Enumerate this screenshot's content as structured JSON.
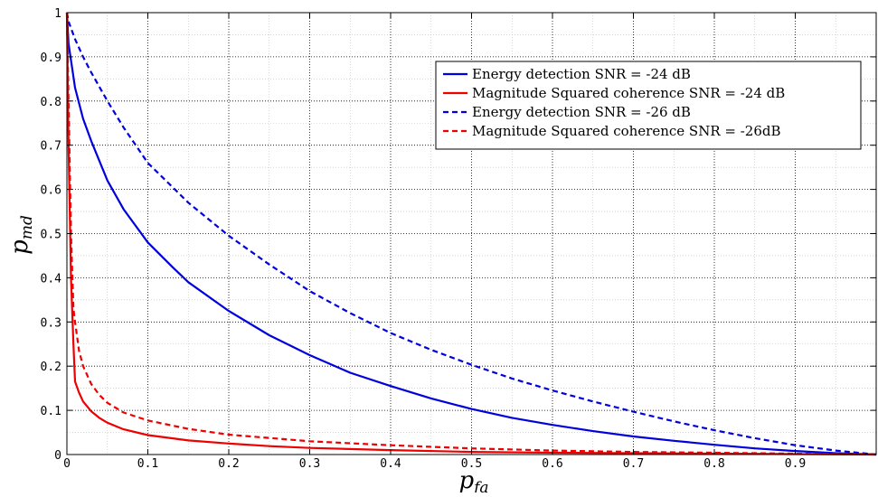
{
  "chart_data": {
    "type": "line",
    "xlabel": "p",
    "xlabel_sub": "fa",
    "ylabel": "p",
    "ylabel_sub": "md",
    "xlim": [
      0,
      1
    ],
    "ylim": [
      0,
      1
    ],
    "grid": true,
    "minor_grid": true,
    "legend_position": "top-right",
    "xticks": [
      "0",
      "0.1",
      "0.2",
      "0.3",
      "0.4",
      "0.5",
      "0.6",
      "0.7",
      "0.8",
      "0.9"
    ],
    "yticks": [
      "0",
      "0.1",
      "0.2",
      "0.3",
      "0.4",
      "0.5",
      "0.6",
      "0.7",
      "0.8",
      "0.9",
      "1"
    ],
    "series": [
      {
        "name": "Energy detection SNR = -24 dB",
        "color": "#0000dd",
        "dash": "solid",
        "x": [
          0,
          0.002,
          0.01,
          0.02,
          0.03,
          0.05,
          0.07,
          0.1,
          0.13,
          0.15,
          0.2,
          0.25,
          0.3,
          0.35,
          0.4,
          0.45,
          0.5,
          0.55,
          0.6,
          0.65,
          0.7,
          0.75,
          0.8,
          0.85,
          0.9,
          0.95,
          1.0
        ],
        "y": [
          1.0,
          0.93,
          0.83,
          0.76,
          0.71,
          0.62,
          0.555,
          0.48,
          0.425,
          0.39,
          0.325,
          0.27,
          0.225,
          0.185,
          0.155,
          0.127,
          0.103,
          0.083,
          0.067,
          0.053,
          0.041,
          0.031,
          0.022,
          0.014,
          0.008,
          0.003,
          0.0
        ]
      },
      {
        "name": "Magnitude Squared coherence SNR = -24 dB",
        "color": "#ee0000",
        "dash": "solid",
        "x": [
          0,
          0.002,
          0.005,
          0.008,
          0.01,
          0.015,
          0.02,
          0.03,
          0.04,
          0.05,
          0.07,
          0.1,
          0.15,
          0.2,
          0.25,
          0.3,
          0.4,
          0.5,
          0.6,
          0.7,
          0.8,
          0.9,
          1.0
        ],
        "y": [
          1.0,
          0.7,
          0.4,
          0.25,
          0.165,
          0.14,
          0.12,
          0.098,
          0.083,
          0.072,
          0.057,
          0.044,
          0.032,
          0.025,
          0.019,
          0.015,
          0.01,
          0.006,
          0.004,
          0.003,
          0.002,
          0.001,
          0.0
        ]
      },
      {
        "name": "Energy detection SNR = -26 dB",
        "color": "#0000dd",
        "dash": "dashed",
        "x": [
          0,
          0.002,
          0.01,
          0.02,
          0.03,
          0.05,
          0.07,
          0.1,
          0.15,
          0.2,
          0.25,
          0.3,
          0.35,
          0.4,
          0.45,
          0.5,
          0.55,
          0.6,
          0.65,
          0.7,
          0.75,
          0.8,
          0.85,
          0.9,
          0.95,
          1.0
        ],
        "y": [
          1.0,
          0.98,
          0.94,
          0.9,
          0.865,
          0.8,
          0.74,
          0.66,
          0.57,
          0.495,
          0.43,
          0.37,
          0.32,
          0.275,
          0.237,
          0.203,
          0.172,
          0.145,
          0.12,
          0.097,
          0.075,
          0.055,
          0.037,
          0.021,
          0.009,
          0.0
        ]
      },
      {
        "name": "Magnitude Squared coherence SNR = -26dB",
        "color": "#ee0000",
        "dash": "dashed",
        "x": [
          0,
          0.002,
          0.005,
          0.008,
          0.01,
          0.015,
          0.02,
          0.03,
          0.04,
          0.05,
          0.07,
          0.1,
          0.15,
          0.2,
          0.3,
          0.4,
          0.5,
          0.6,
          0.7,
          0.8,
          0.9,
          1.0
        ],
        "y": [
          1.0,
          0.8,
          0.5,
          0.33,
          0.3,
          0.235,
          0.2,
          0.16,
          0.135,
          0.117,
          0.095,
          0.077,
          0.058,
          0.045,
          0.03,
          0.021,
          0.014,
          0.009,
          0.006,
          0.004,
          0.002,
          0.0
        ]
      }
    ]
  }
}
